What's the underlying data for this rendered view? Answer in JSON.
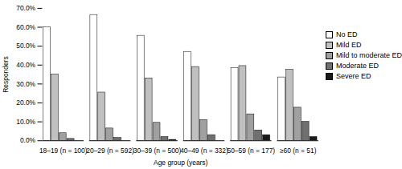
{
  "chart_data": {
    "type": "bar",
    "x_label": "Age group (years)",
    "y_label": "Responders",
    "categories": [
      "18–19 (n = 100)",
      "20–29 (n = 592)",
      "30–39 (n = 500)",
      "40–49 (n = 332)",
      "50–59 (n = 177)",
      "≥60 (n = 51)"
    ],
    "series": [
      {
        "name": "No ED",
        "color": "#ffffff",
        "values": [
          60,
          66.5,
          55.5,
          47,
          38.5,
          33.5
        ]
      },
      {
        "name": "Mild ED",
        "color": "#c0c0c0",
        "values": [
          35,
          25.5,
          33,
          39,
          39.5,
          37.5
        ]
      },
      {
        "name": "Mild to moderate ED",
        "color": "#a0a0a0",
        "values": [
          4,
          6.5,
          9.5,
          11,
          14,
          17.5
        ]
      },
      {
        "name": "Moderate ED",
        "color": "#707070",
        "values": [
          1,
          1.5,
          2,
          3,
          5.5,
          10
        ]
      },
      {
        "name": "Severe ED",
        "color": "#1a1a1a",
        "values": [
          0,
          0,
          0.5,
          0,
          3,
          2
        ]
      }
    ],
    "ylim": [
      0,
      70
    ],
    "yticks": [
      {
        "value": 0,
        "label": "0.0%"
      },
      {
        "value": 10,
        "label": "10.0%"
      },
      {
        "value": 20,
        "label": "20.0%"
      },
      {
        "value": 30,
        "label": "30.0%"
      },
      {
        "value": 40,
        "label": "40.0%"
      },
      {
        "value": 50,
        "label": "50.0%"
      },
      {
        "value": 60,
        "label": "60.0%"
      },
      {
        "value": 70,
        "label": "70.0%"
      }
    ],
    "grid": false,
    "legend": "right"
  }
}
